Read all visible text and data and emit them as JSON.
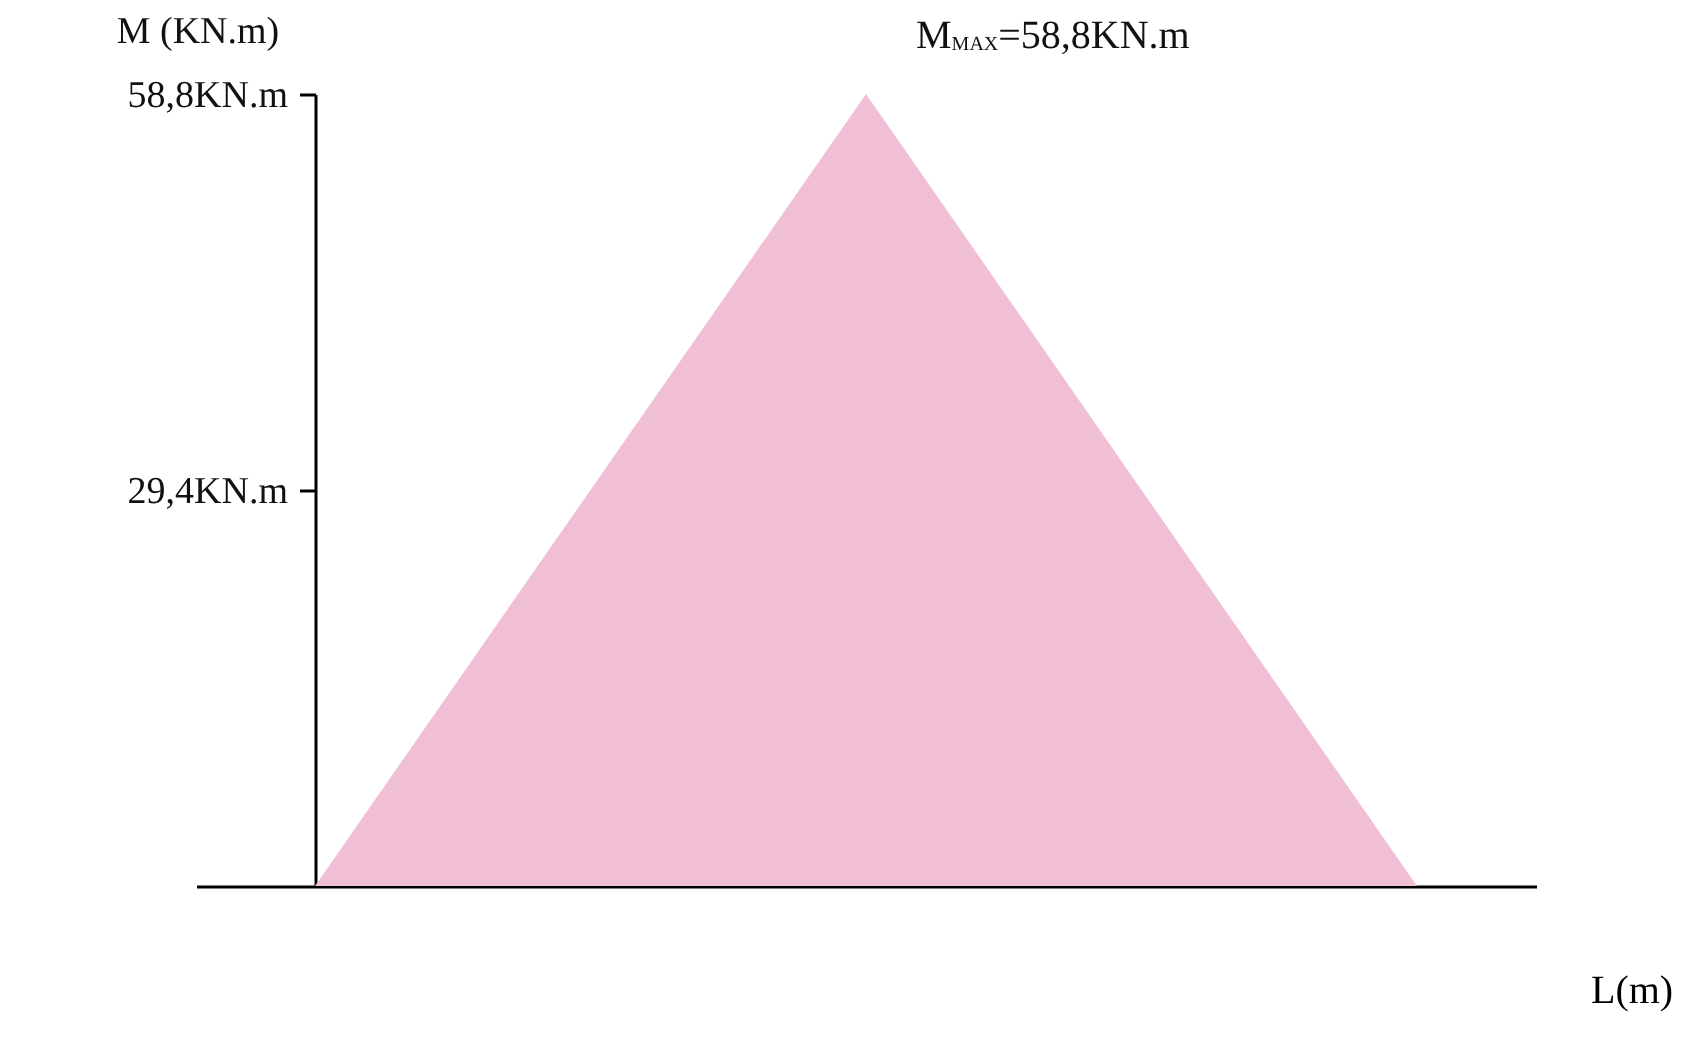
{
  "chart_data": {
    "type": "area",
    "ylabel": "M (KN.m)",
    "xlabel": "L(m)",
    "categories": [
      null,
      null,
      null
    ],
    "series": [
      {
        "color": "#f0bfd6",
        "values": [
          0,
          58.8,
          0
        ]
      }
    ],
    "ylim": [
      0,
      58.8
    ],
    "yticks": [
      {
        "value": 29.4,
        "label": "29,4KN.m"
      },
      {
        "value": 58.8,
        "label": "58,8KN.m"
      }
    ],
    "annotations": [
      "M$_{MAX}$=58,8KN.m"
    ],
    "tick_labels": "y",
    "grid": false
  }
}
